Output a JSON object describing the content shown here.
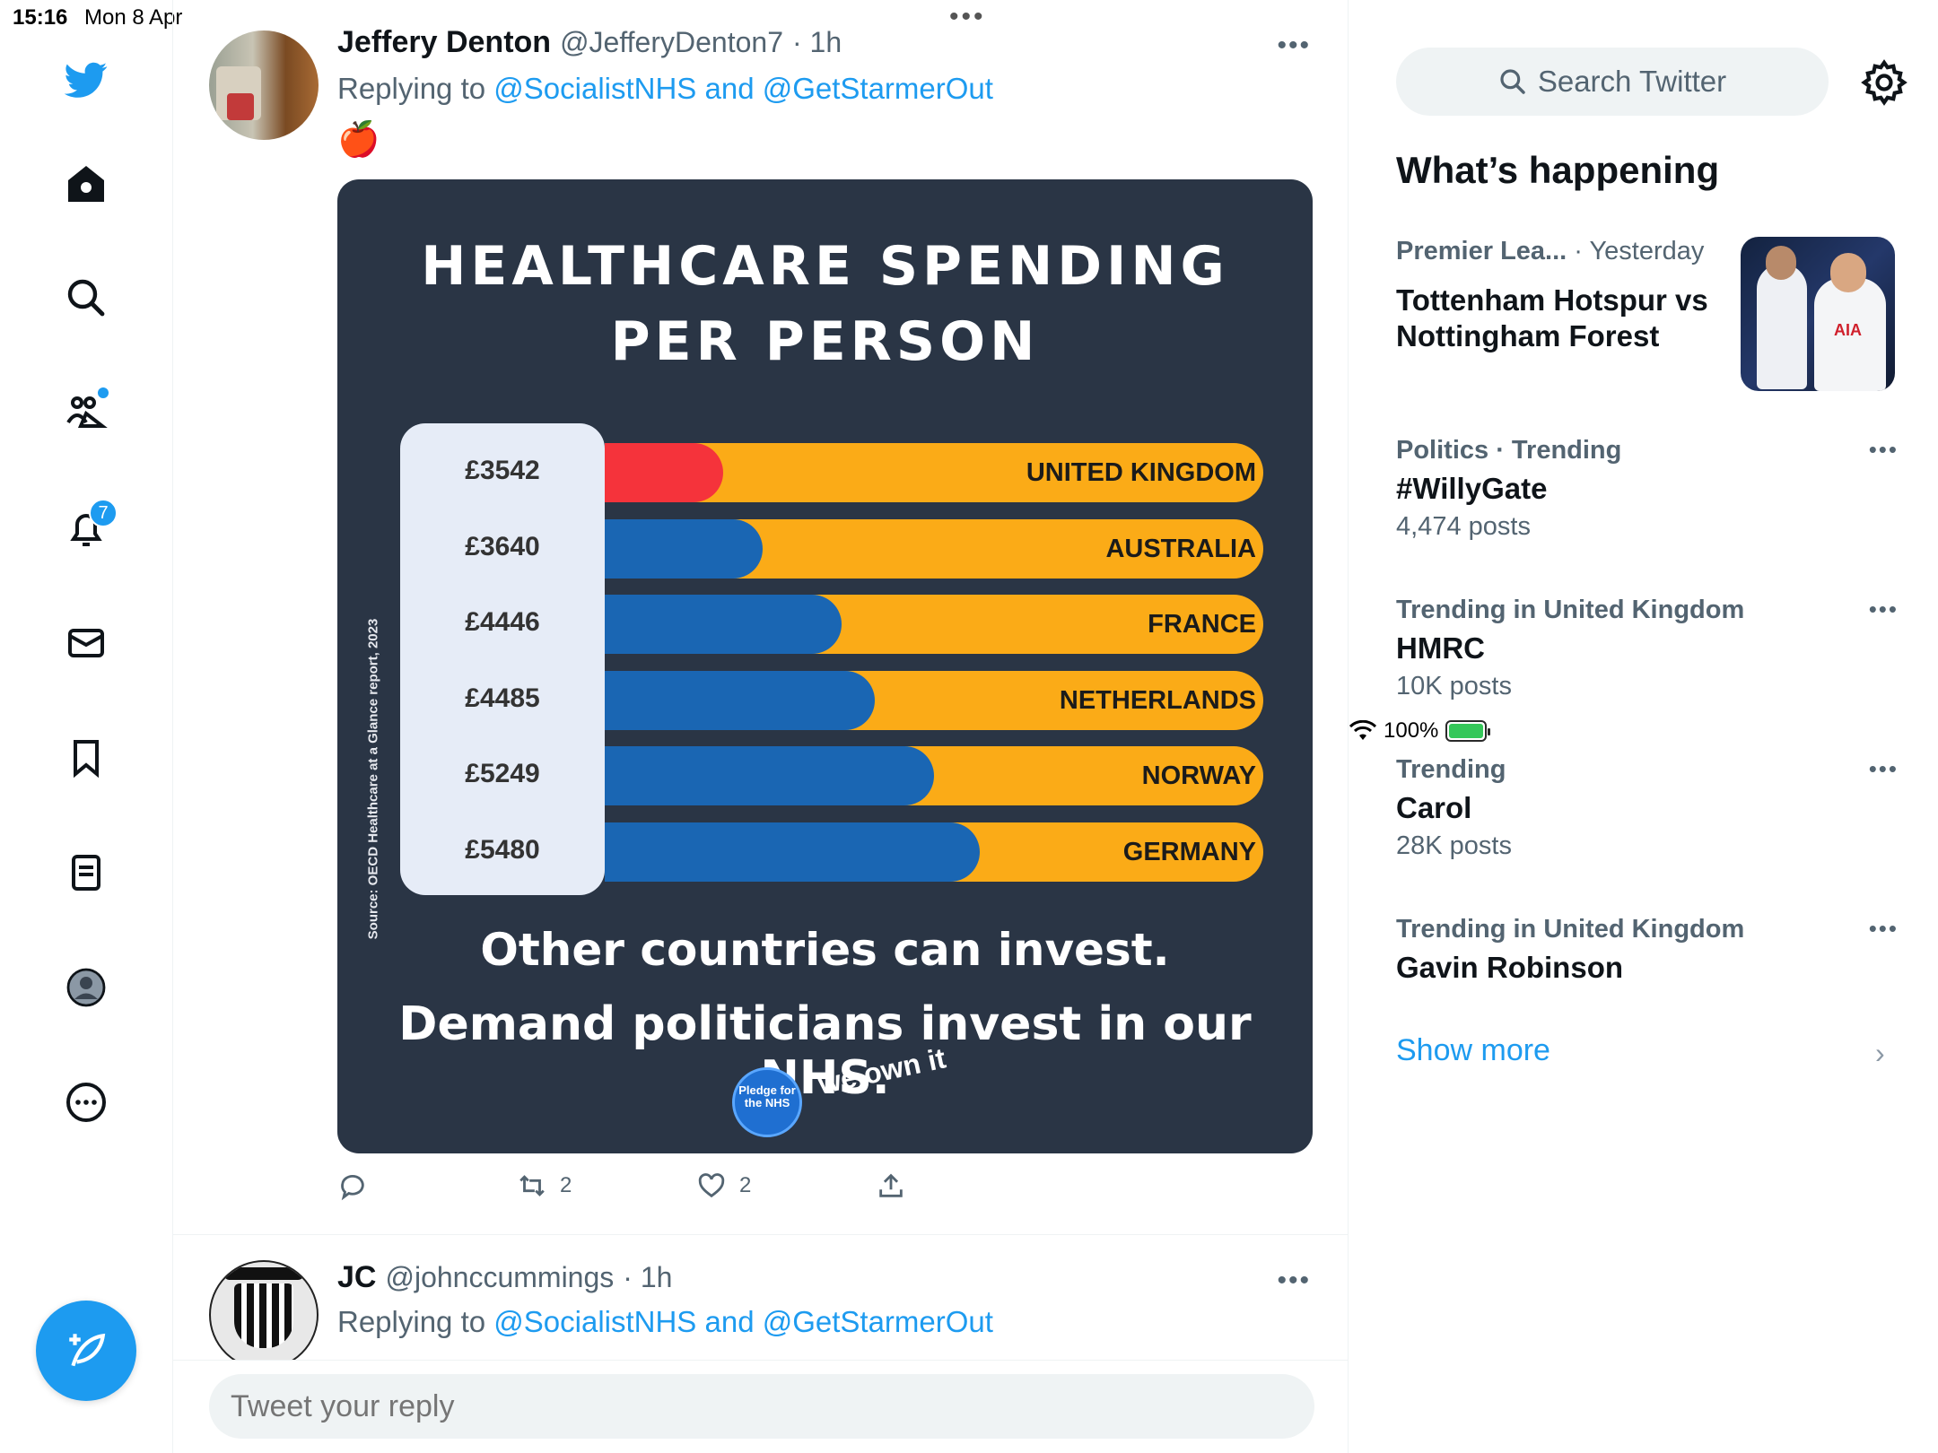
{
  "status_bar": {
    "time": "15:16",
    "date": "Mon 8 Apr",
    "battery": "100%"
  },
  "nav": {
    "notifications_badge": "7",
    "icons": [
      "twitter-logo-icon",
      "home-icon",
      "search-icon",
      "communities-icon",
      "bell-icon",
      "mail-icon",
      "bookmark-icon",
      "lists-icon",
      "profile-icon",
      "more-circle-icon",
      "compose-icon"
    ],
    "accent_color": "#1d9bf0"
  },
  "tweets": [
    {
      "name": "Jeffery Denton",
      "handle": "@JefferyDenton7",
      "time": "· 1h",
      "replying_prefix": "Replying to ",
      "replying_to": "@SocialistNHS and @GetStarmerOut",
      "emoji": "🍎",
      "media": {
        "title_line1": "HEALTHCARE SPENDING",
        "title_line2": "PER PERSON",
        "source": "Source: OECD Healthcare at a Glance report, 2023",
        "cta_line1": "Other countries can invest.",
        "cta_line2": "Demand politicians invest in our NHS.",
        "pledge_text": "Pledge for the NHS",
        "we_own_it": "we own it",
        "chart_data": {
          "type": "bar",
          "categories": [
            "UNITED KINGDOM",
            "AUSTRALIA",
            "FRANCE",
            "NETHERLANDS",
            "NORWAY",
            "GERMANY"
          ],
          "labels": [
            "£3542",
            "£3640",
            "£4446",
            "£4485",
            "£5249",
            "£5480"
          ],
          "values": [
            3542,
            3640,
            4446,
            4485,
            5249,
            5480
          ],
          "fill_fractions": [
            0.18,
            0.24,
            0.36,
            0.41,
            0.5,
            0.57
          ],
          "colors": {
            "uk": "#f5333b",
            "others": "#1a66b3",
            "track": "#fbab17"
          }
        }
      },
      "actions": {
        "reply_count": "",
        "retweet_count": "2",
        "like_count": "2"
      }
    },
    {
      "name": "JC",
      "handle": "@johnccummings",
      "time": "· 1h",
      "replying_prefix": "Replying to ",
      "replying_to": "@SocialistNHS and @GetStarmerOut"
    }
  ],
  "reply_box": {
    "placeholder": "Tweet your reply"
  },
  "sidebar": {
    "search_placeholder": "Search Twitter",
    "whats_happening": "What’s happening",
    "trends": [
      {
        "category": "Premier Lea...",
        "context": " · Yesterday",
        "topic": "Tottenham Hotspur vs Nottingham Forest",
        "count": ""
      },
      {
        "category": "Politics · Trending",
        "context": "",
        "topic": "#WillyGate",
        "count": "4,474 posts"
      },
      {
        "category": "Trending in United Kingdom",
        "context": "",
        "topic": "HMRC",
        "count": "10K posts"
      },
      {
        "category": "Trending",
        "context": "",
        "topic": "Carol",
        "count": "28K posts"
      },
      {
        "category": "Trending in United Kingdom",
        "context": "",
        "topic": "Gavin Robinson",
        "count": ""
      }
    ],
    "show_more": "Show more"
  }
}
